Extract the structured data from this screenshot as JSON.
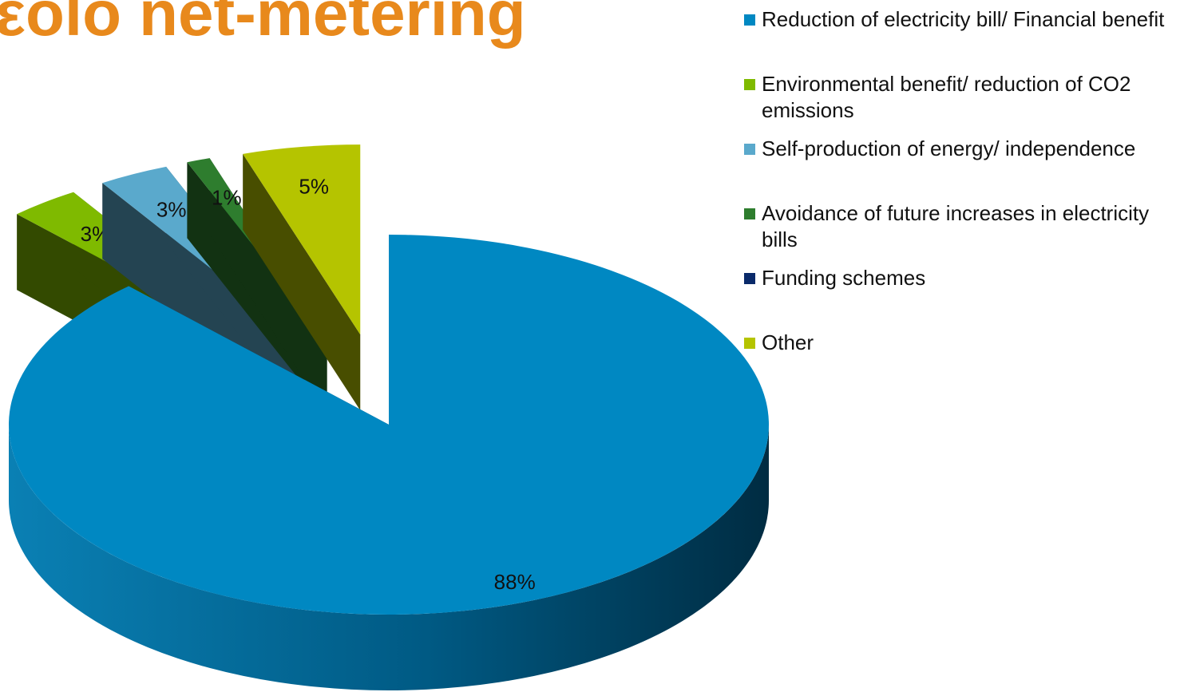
{
  "chart_data": {
    "type": "pie",
    "title": "εοlο net-metering",
    "categories": [
      "Reduction of electricity bill/ Financial benefit",
      "Environmental benefit/ reduction of CO2 emissions",
      "Self-production of energy/ independence",
      "Avoidance of future increases in electricity bills",
      "Funding schemes",
      "Other"
    ],
    "values": [
      88,
      3,
      3,
      1,
      0,
      5
    ],
    "value_labels": [
      "88%",
      "3%",
      "3%",
      "1%",
      null,
      "5%"
    ],
    "colors": [
      "#0088c2",
      "#7fba00",
      "#5aa9cc",
      "#2e7d2e",
      "#0a2a6a",
      "#b5c400"
    ],
    "legend": "right"
  }
}
